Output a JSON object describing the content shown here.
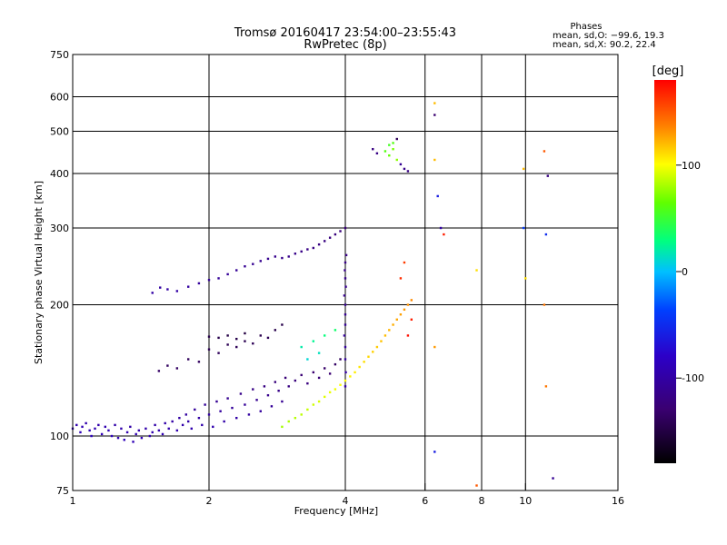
{
  "chart_data": {
    "type": "scatter",
    "title": "Tromsø 20160417 23:54:00–23:55:43",
    "subtitle": "RwPretec (8p)",
    "xlabel": "Frequency [MHz]",
    "ylabel": "Stationary phase Virtual Height [km]",
    "x_scale": "log",
    "y_scale": "log",
    "xlim": [
      1,
      16
    ],
    "ylim": [
      75,
      750
    ],
    "x_ticks": [
      1,
      2,
      4,
      6,
      8,
      10,
      16
    ],
    "x_tick_labels": [
      "1",
      "2",
      "4",
      "6",
      "8",
      "10",
      "16"
    ],
    "y_ticks": [
      75,
      100,
      200,
      300,
      400,
      500,
      600,
      750
    ],
    "y_tick_labels": [
      "75",
      "100",
      "200",
      "300",
      "400",
      "500",
      "600",
      "750"
    ],
    "x_gridlines": [
      2,
      4,
      6,
      8,
      10
    ],
    "y_gridlines": [
      100,
      200,
      300,
      400,
      500,
      600
    ],
    "grid": true,
    "phase_header": "Phases",
    "stats": [
      "mean, sd,O: −99.6, 19.3",
      "mean, sd,X:  90.2, 22.4"
    ],
    "colorbar": {
      "label": "[deg]",
      "ticks": [
        100,
        0,
        -100
      ],
      "tick_labels": [
        "100",
        "0",
        "-100"
      ],
      "range": [
        -180,
        180
      ]
    },
    "series": [
      {
        "comment_free": true,
        "points": [
          [
            1.0,
            104,
            -90
          ],
          [
            1.02,
            106,
            -95
          ],
          [
            1.04,
            102,
            -88
          ],
          [
            1.05,
            105,
            -92
          ],
          [
            1.07,
            107,
            -96
          ],
          [
            1.09,
            103,
            -90
          ],
          [
            1.1,
            100,
            -85
          ],
          [
            1.12,
            104,
            -93
          ],
          [
            1.14,
            106,
            -97
          ],
          [
            1.16,
            101,
            -89
          ],
          [
            1.18,
            105,
            -94
          ],
          [
            1.2,
            103,
            -91
          ],
          [
            1.22,
            100,
            -86
          ],
          [
            1.24,
            106,
            -98
          ],
          [
            1.26,
            99,
            -92
          ],
          [
            1.28,
            104,
            -95
          ],
          [
            1.3,
            98,
            -88
          ],
          [
            1.32,
            102,
            -94
          ],
          [
            1.34,
            105,
            -99
          ],
          [
            1.36,
            97,
            -90
          ],
          [
            1.38,
            101,
            -93
          ],
          [
            1.4,
            103,
            -96
          ],
          [
            1.42,
            99,
            -90
          ],
          [
            1.45,
            104,
            -97
          ],
          [
            1.48,
            100,
            -92
          ],
          [
            1.5,
            102,
            -95
          ],
          [
            1.52,
            106,
            -99
          ],
          [
            1.55,
            103,
            -94
          ],
          [
            1.58,
            101,
            -92
          ],
          [
            1.6,
            107,
            -98
          ],
          [
            1.63,
            104,
            -96
          ],
          [
            1.66,
            108,
            -100
          ],
          [
            1.7,
            103,
            -94
          ],
          [
            1.72,
            110,
            -101
          ],
          [
            1.75,
            106,
            -97
          ],
          [
            1.78,
            112,
            -103
          ],
          [
            1.8,
            108,
            -99
          ],
          [
            1.83,
            104,
            -95
          ],
          [
            1.86,
            115,
            -105
          ],
          [
            1.9,
            110,
            -100
          ],
          [
            1.93,
            106,
            -96
          ],
          [
            1.96,
            118,
            -108
          ],
          [
            2.0,
            112,
            -102
          ],
          [
            2.04,
            105,
            -95
          ],
          [
            2.08,
            120,
            -110
          ],
          [
            2.12,
            114,
            -104
          ],
          [
            2.16,
            108,
            -98
          ],
          [
            2.2,
            122,
            -112
          ],
          [
            2.25,
            116,
            -106
          ],
          [
            2.3,
            110,
            -100
          ],
          [
            2.35,
            125,
            -115
          ],
          [
            2.4,
            118,
            -108
          ],
          [
            2.45,
            112,
            -102
          ],
          [
            2.5,
            128,
            -118
          ],
          [
            2.55,
            121,
            -111
          ],
          [
            2.6,
            114,
            -104
          ],
          [
            2.65,
            130,
            -120
          ],
          [
            2.7,
            124,
            -114
          ],
          [
            2.75,
            117,
            -107
          ],
          [
            2.8,
            133,
            -123
          ],
          [
            2.85,
            127,
            -117
          ],
          [
            2.9,
            120,
            -110
          ],
          [
            2.95,
            136,
            -126
          ],
          [
            3.0,
            130,
            -120
          ],
          [
            3.1,
            134,
            -124
          ],
          [
            3.2,
            138,
            -128
          ],
          [
            3.3,
            132,
            -122
          ],
          [
            3.4,
            140,
            -130
          ],
          [
            3.5,
            136,
            -126
          ],
          [
            3.6,
            143,
            -133
          ],
          [
            3.7,
            139,
            -129
          ],
          [
            3.8,
            146,
            -136
          ],
          [
            3.9,
            150,
            -140
          ],
          [
            1.55,
            141,
            -135
          ],
          [
            1.62,
            145,
            -138
          ],
          [
            1.7,
            143,
            -136
          ],
          [
            1.8,
            150,
            -140
          ],
          [
            1.9,
            148,
            -138
          ],
          [
            2.0,
            158,
            -142
          ],
          [
            2.1,
            155,
            -140
          ],
          [
            2.2,
            162,
            -143
          ],
          [
            2.3,
            160,
            -141
          ],
          [
            2.4,
            165,
            -144
          ],
          [
            2.5,
            163,
            -142
          ],
          [
            2.6,
            170,
            -145
          ],
          [
            2.7,
            168,
            -143
          ],
          [
            2.8,
            175,
            -146
          ],
          [
            2.9,
            180,
            -147
          ],
          [
            2.0,
            169,
            -148
          ],
          [
            2.1,
            168,
            -146
          ],
          [
            2.2,
            170,
            -149
          ],
          [
            2.3,
            167,
            -147
          ],
          [
            2.4,
            172,
            -150
          ],
          [
            1.5,
            213,
            -100
          ],
          [
            1.56,
            219,
            -102
          ],
          [
            1.62,
            217,
            -101
          ],
          [
            1.7,
            215,
            -100
          ],
          [
            1.8,
            220,
            -103
          ],
          [
            1.9,
            224,
            -105
          ],
          [
            2.0,
            228,
            -106
          ],
          [
            2.1,
            230,
            -107
          ],
          [
            2.2,
            235,
            -108
          ],
          [
            2.3,
            240,
            -109
          ],
          [
            2.4,
            245,
            -110
          ],
          [
            2.5,
            248,
            -111
          ],
          [
            2.6,
            252,
            -112
          ],
          [
            2.7,
            255,
            -113
          ],
          [
            2.8,
            258,
            -114
          ],
          [
            2.9,
            256,
            -114
          ],
          [
            3.0,
            258,
            -115
          ],
          [
            3.1,
            262,
            -116
          ],
          [
            3.2,
            265,
            -117
          ],
          [
            3.3,
            268,
            -118
          ],
          [
            3.4,
            270,
            -119
          ],
          [
            3.5,
            275,
            -120
          ],
          [
            3.6,
            280,
            -121
          ],
          [
            3.7,
            285,
            -122
          ],
          [
            3.8,
            290,
            -123
          ],
          [
            3.9,
            295,
            -124
          ],
          [
            4.0,
            300,
            -125
          ],
          [
            4.0,
            180,
            -110
          ],
          [
            4.0,
            190,
            -112
          ],
          [
            4.0,
            200,
            -113
          ],
          [
            3.98,
            210,
            -114
          ],
          [
            4.01,
            220,
            -115
          ],
          [
            4.0,
            230,
            -116
          ],
          [
            3.99,
            240,
            -117
          ],
          [
            4.0,
            250,
            -118
          ],
          [
            4.02,
            260,
            -119
          ],
          [
            3.98,
            170,
            -108
          ],
          [
            4.0,
            160,
            -106
          ],
          [
            4.0,
            150,
            -104
          ],
          [
            4.01,
            140,
            -102
          ],
          [
            4.0,
            130,
            -100
          ],
          [
            2.9,
            105,
            80
          ],
          [
            3.0,
            108,
            82
          ],
          [
            3.1,
            110,
            84
          ],
          [
            3.2,
            112,
            86
          ],
          [
            3.3,
            115,
            88
          ],
          [
            3.4,
            118,
            90
          ],
          [
            3.5,
            120,
            92
          ],
          [
            3.6,
            123,
            94
          ],
          [
            3.7,
            126,
            96
          ],
          [
            3.8,
            128,
            98
          ],
          [
            3.9,
            131,
            100
          ],
          [
            4.0,
            134,
            102
          ],
          [
            4.1,
            137,
            104
          ],
          [
            4.2,
            140,
            106
          ],
          [
            4.3,
            144,
            108
          ],
          [
            4.4,
            148,
            110
          ],
          [
            4.5,
            152,
            112
          ],
          [
            4.6,
            156,
            114
          ],
          [
            4.7,
            160,
            116
          ],
          [
            4.8,
            165,
            118
          ],
          [
            4.9,
            170,
            120
          ],
          [
            5.0,
            175,
            122
          ],
          [
            5.1,
            180,
            124
          ],
          [
            5.2,
            185,
            126
          ],
          [
            5.3,
            190,
            128
          ],
          [
            5.4,
            195,
            130
          ],
          [
            5.5,
            200,
            132
          ],
          [
            5.6,
            205,
            134
          ],
          [
            3.2,
            160,
            20
          ],
          [
            3.4,
            165,
            25
          ],
          [
            3.6,
            170,
            30
          ],
          [
            3.8,
            175,
            35
          ],
          [
            3.3,
            150,
            10
          ],
          [
            3.5,
            155,
            15
          ],
          [
            4.9,
            450,
            60
          ],
          [
            5.0,
            440,
            65
          ],
          [
            5.1,
            455,
            70
          ],
          [
            5.2,
            430,
            75
          ],
          [
            5.0,
            465,
            55
          ],
          [
            5.1,
            470,
            60
          ],
          [
            5.3,
            420,
            -110
          ],
          [
            5.4,
            410,
            -115
          ],
          [
            5.5,
            405,
            -120
          ],
          [
            4.6,
            455,
            -120
          ],
          [
            4.7,
            445,
            -118
          ],
          [
            5.2,
            480,
            -140
          ],
          [
            5.5,
            170,
            175
          ],
          [
            5.6,
            185,
            170
          ],
          [
            5.3,
            230,
            165
          ],
          [
            5.4,
            250,
            160
          ],
          [
            6.3,
            580,
            120
          ],
          [
            6.3,
            545,
            -130
          ],
          [
            6.3,
            430,
            120
          ],
          [
            6.4,
            355,
            -60
          ],
          [
            6.5,
            300,
            -100
          ],
          [
            6.6,
            290,
            170
          ],
          [
            6.3,
            92,
            -60
          ],
          [
            6.3,
            160,
            130
          ],
          [
            7.8,
            77,
            150
          ],
          [
            7.8,
            240,
            110
          ],
          [
            9.9,
            410,
            120
          ],
          [
            9.9,
            300,
            -40
          ],
          [
            10.0,
            230,
            110
          ],
          [
            11.0,
            450,
            150
          ],
          [
            11.2,
            395,
            -120
          ],
          [
            11.1,
            290,
            -50
          ],
          [
            11.0,
            200,
            140
          ],
          [
            11.1,
            130,
            140
          ],
          [
            11.5,
            80,
            -110
          ]
        ]
      }
    ]
  }
}
